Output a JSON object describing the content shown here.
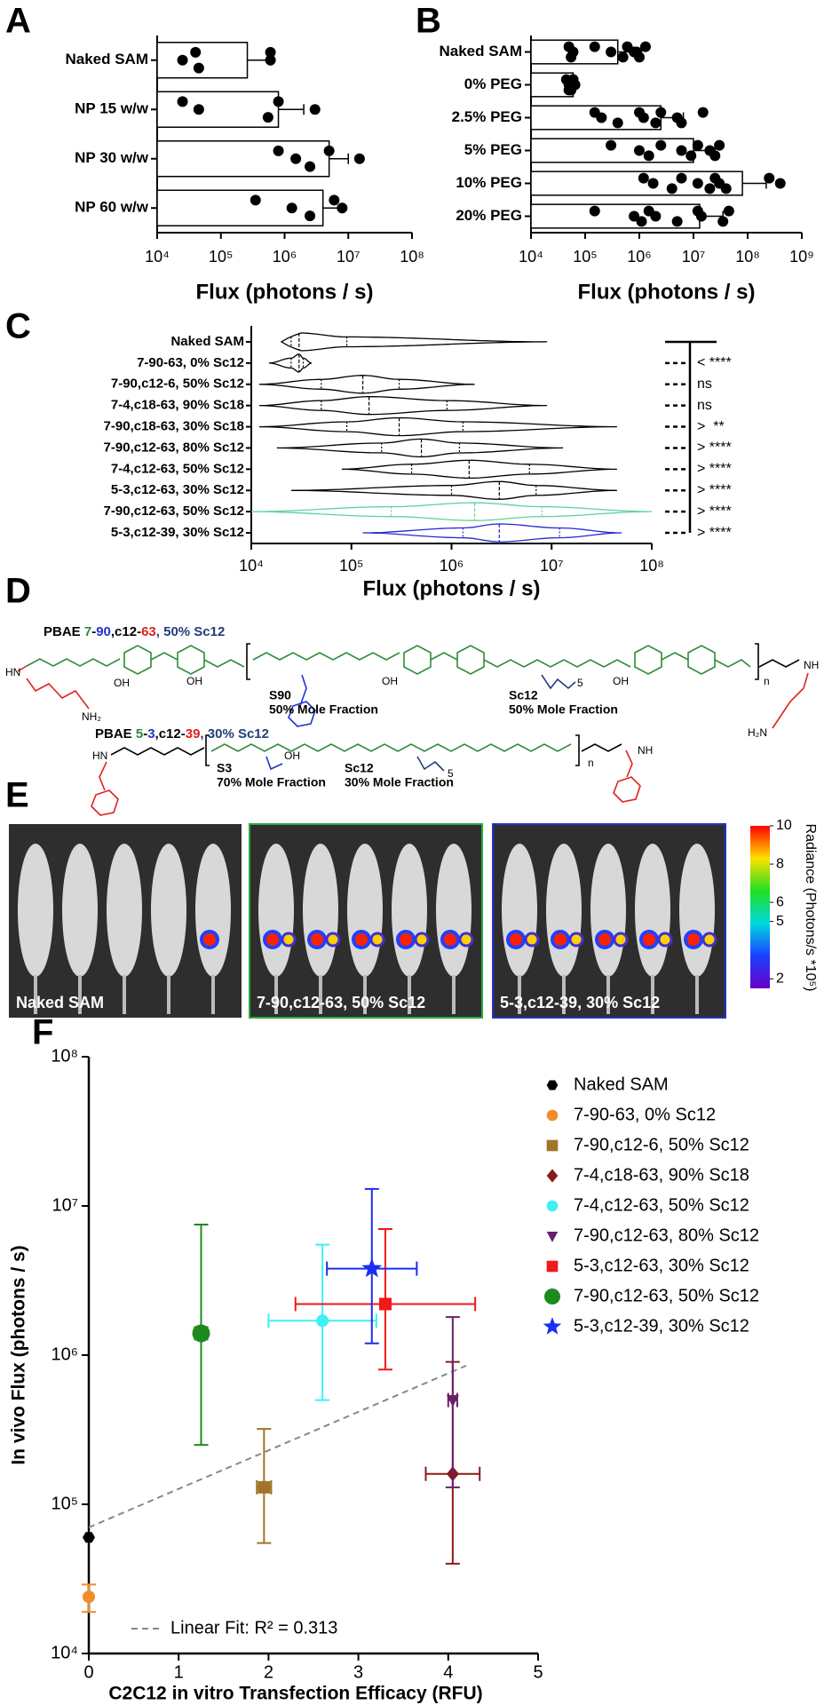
{
  "chart_data": [
    {
      "type": "bar_points",
      "label": "A",
      "xlabel": "Flux (photons / s)",
      "xscale": "log",
      "categories": [
        "Naked SAM",
        "NP 15 w/w",
        "NP 30 w/w",
        "NP 60 w/w"
      ],
      "values": [
        260000,
        800000,
        5000000,
        4000000
      ],
      "errors": [
        340000,
        1200000,
        5000000,
        4000000
      ],
      "points": [
        [
          40000,
          25000,
          45000,
          600000,
          600000
        ],
        [
          25000,
          45000,
          550000,
          800000,
          3000000
        ],
        [
          800000,
          1500000,
          2500000,
          5000000,
          15000000
        ],
        [
          350000,
          1300000,
          2500000,
          6000000,
          8000000
        ]
      ],
      "color": "#ffffff",
      "point_color": "#000000",
      "xlim": [
        10000,
        100000000
      ],
      "xticks": [
        {
          "value": 10000,
          "label": "10⁴"
        },
        {
          "value": 100000,
          "label": "10⁵"
        },
        {
          "value": 1000000,
          "label": "10⁶"
        },
        {
          "value": 10000000,
          "label": "10⁷"
        },
        {
          "value": 100000000,
          "label": "10⁸"
        }
      ]
    },
    {
      "type": "bar_points",
      "label": "B",
      "xlabel": "Flux (photons / s)",
      "xscale": "log",
      "categories": [
        "Naked SAM",
        "0% PEG",
        "2.5% PEG",
        "5% PEG",
        "10% PEG",
        "20% PEG"
      ],
      "values": [
        400000,
        60000,
        2500000,
        10000000,
        80000000,
        13000000
      ],
      "errors": [
        400000,
        5000,
        4000000,
        15000000,
        140000000,
        22000000
      ],
      "points": [
        [
          50000,
          60000,
          55000,
          150000,
          300000,
          500000,
          600000,
          800000,
          1000000,
          1300000,
          900000
        ],
        [
          45000,
          50000,
          55000,
          60000,
          65000,
          50000,
          60000,
          55000
        ],
        [
          150000,
          200000,
          400000,
          1000000,
          1200000,
          2000000,
          2500000,
          5000000,
          6000000,
          15000000
        ],
        [
          300000,
          1000000,
          1500000,
          2500000,
          6000000,
          9000000,
          12000000,
          20000000,
          25000000,
          30000000
        ],
        [
          1200000,
          1800000,
          4000000,
          6000000,
          12000000,
          20000000,
          25000000,
          30000000,
          40000000,
          250000000,
          400000000
        ],
        [
          150000,
          800000,
          1100000,
          1500000,
          2000000,
          5000000,
          12000000,
          14000000,
          35000000,
          45000000
        ]
      ],
      "color": "#ffffff",
      "point_color": "#000000",
      "xlim": [
        10000,
        1000000000
      ],
      "xticks": [
        {
          "value": 10000,
          "label": "10⁴"
        },
        {
          "value": 100000,
          "label": "10⁵"
        },
        {
          "value": 1000000,
          "label": "10⁶"
        },
        {
          "value": 10000000,
          "label": "10⁷"
        },
        {
          "value": 100000000,
          "label": "10⁸"
        },
        {
          "value": 1000000000,
          "label": "10⁹"
        }
      ]
    },
    {
      "type": "violin",
      "label": "C",
      "xlabel": "Flux (photons / s)",
      "xscale": "log",
      "categories": [
        "Naked SAM",
        "7-90-63, 0% Sc12",
        "7-90,c12-6, 50% Sc12",
        "7-4,c18-63, 90% Sc18",
        "7-90,c18-63, 30% Sc18",
        "7-90,c12-63, 80% Sc12",
        "7-4,c12-63, 50% Sc12",
        "5-3,c12-63, 30% Sc12",
        "7-90,c12-63, 50% Sc12",
        "5-3,c12-39, 30% Sc12"
      ],
      "min": [
        20000,
        15000,
        12000,
        12000,
        12000,
        18000,
        80000,
        25000,
        10000,
        130000
      ],
      "q1": [
        25000,
        25000,
        50000,
        50000,
        90000,
        200000,
        400000,
        1000000,
        250000,
        1300000
      ],
      "median": [
        30000,
        30000,
        130000,
        150000,
        300000,
        500000,
        1500000,
        3000000,
        1700000,
        3000000
      ],
      "q3": [
        90000,
        33000,
        300000,
        900000,
        1300000,
        1200000,
        6000000,
        7000000,
        8000000,
        12000000
      ],
      "max": [
        9000000,
        40000,
        1700000,
        9000000,
        45000000,
        13000000,
        45000000,
        45000000,
        100000000,
        50000000
      ],
      "colors": [
        "#000000",
        "#000000",
        "#000000",
        "#000000",
        "#000000",
        "#000000",
        "#000000",
        "#000000",
        "#5fd39a",
        "#2727d0"
      ],
      "significance": [
        null,
        "< ****",
        "ns",
        "ns",
        ">  **",
        "> ****",
        "> ****",
        "> ****",
        "> ****",
        "> ****"
      ],
      "xlim": [
        10000,
        100000000
      ],
      "xticks": [
        {
          "value": 10000,
          "label": "10⁴"
        },
        {
          "value": 100000,
          "label": "10⁵"
        },
        {
          "value": 1000000,
          "label": "10⁶"
        },
        {
          "value": 10000000,
          "label": "10⁷"
        },
        {
          "value": 100000000,
          "label": "10⁸"
        }
      ]
    },
    {
      "type": "scatter",
      "label": "F",
      "xlabel": "C2C12 in vitro Transfection Efficacy (RFU)",
      "ylabel": "In vivo Flux (photons / s)",
      "yscale": "log",
      "xlim": [
        0,
        5
      ],
      "xticks": [
        0,
        1,
        2,
        3,
        4,
        5
      ],
      "ylim": [
        10000,
        100000000
      ],
      "yticks": [
        {
          "value": 10000,
          "label": "10⁴"
        },
        {
          "value": 100000,
          "label": "10⁵"
        },
        {
          "value": 1000000,
          "label": "10⁶"
        },
        {
          "value": 10000000,
          "label": "10⁷"
        },
        {
          "value": 100000000,
          "label": "10⁸"
        }
      ],
      "series": [
        {
          "name": "Naked SAM",
          "color": "#000000",
          "marker": "hexagon",
          "x": 0,
          "y": 60000
        },
        {
          "name": "7-90-63, 0% Sc12",
          "color": "#f28c28",
          "marker": "circle",
          "x": 0,
          "y": 24000,
          "y_low": 19000,
          "y_high": 29000
        },
        {
          "name": "7-90,c12-6, 50% Sc12",
          "color": "#a0752a",
          "marker": "square",
          "x": 1.95,
          "y": 130000,
          "xerr": 0.08,
          "y_low": 55000,
          "y_high": 320000
        },
        {
          "name": "7-4,c18-63, 90% Sc18",
          "color": "#8b1a1a",
          "marker": "diamond",
          "x": 4.05,
          "y": 160000,
          "xerr": 0.3,
          "y_low": 40000,
          "y_high": 900000
        },
        {
          "name": "7-4,c12-63, 50% Sc12",
          "color": "#3ff0f5",
          "marker": "circle",
          "x": 2.6,
          "y": 1700000,
          "xerr": 0.6,
          "y_low": 500000,
          "y_high": 5500000
        },
        {
          "name": "7-90,c12-63, 80% Sc12",
          "color": "#6a1f6a",
          "marker": "triangle-down",
          "x": 4.05,
          "y": 500000,
          "xerr": 0.05,
          "y_low": 130000,
          "y_high": 1800000
        },
        {
          "name": "5-3,c12-63, 30% Sc12",
          "color": "#f01818",
          "marker": "square",
          "x": 3.3,
          "y": 2200000,
          "xerr": 1.0,
          "y_low": 800000,
          "y_high": 7000000
        },
        {
          "name": "7-90,c12-63, 50% Sc12",
          "color": "#1e8a1e",
          "marker": "big-circle",
          "x": 1.25,
          "y": 1400000,
          "xerr": 0.07,
          "y_low": 250000,
          "y_high": 7500000
        },
        {
          "name": "5-3,c12-39, 30% Sc12",
          "color": "#1a2ff0",
          "marker": "star",
          "x": 3.15,
          "y": 3800000,
          "xerr": 0.5,
          "y_low": 1200000,
          "y_high": 13000000
        }
      ],
      "fit": {
        "label": "Linear Fit: R² = 0.313",
        "color": "#888888",
        "x": [
          0,
          4.2
        ],
        "y": [
          70000,
          850000
        ]
      }
    }
  ],
  "panel_d": {
    "label": "D",
    "title_1": [
      {
        "text": "PBAE ",
        "color": "#000000"
      },
      {
        "text": "7",
        "color": "#2e8b3a"
      },
      {
        "text": "-",
        "color": "#000000"
      },
      {
        "text": "90",
        "color": "#2233cc"
      },
      {
        "text": ",c12-",
        "color": "#000000"
      },
      {
        "text": "63",
        "color": "#e02020"
      },
      {
        "text": ", 50% Sc12",
        "color": "#1f3f7a"
      }
    ],
    "title_2": [
      {
        "text": "PBAE ",
        "color": "#000000"
      },
      {
        "text": "5",
        "color": "#2e8b3a"
      },
      {
        "text": "-",
        "color": "#000000"
      },
      {
        "text": "3",
        "color": "#2233cc"
      },
      {
        "text": ",c12-",
        "color": "#000000"
      },
      {
        "text": "39",
        "color": "#e02020"
      },
      {
        "text": ", 30% Sc12",
        "color": "#1f3f7a"
      }
    ],
    "labels": [
      {
        "text": "S90",
        "color": "#2233cc"
      },
      {
        "text": "50% Mole Fraction",
        "color": "#2233cc"
      },
      {
        "text": "Sc12",
        "color": "#1f3f7a"
      },
      {
        "text": "50% Mole Fraction",
        "color": "#1f3f7a"
      },
      {
        "text": "S3",
        "color": "#2233cc"
      },
      {
        "text": "70% Mole Fraction",
        "color": "#2233cc"
      },
      {
        "text": "Sc12",
        "color": "#1f3f7a"
      },
      {
        "text": "30% Mole Fraction",
        "color": "#1f3f7a"
      },
      {
        "text": "HN",
        "color": "#e02020"
      },
      {
        "text": "NH₂",
        "color": "#e02020"
      },
      {
        "text": "OH",
        "color": "#2e8b3a"
      },
      {
        "text": "OH",
        "color": "#2e8b3a"
      },
      {
        "text": "OH",
        "color": "#2e8b3a"
      },
      {
        "text": "OH",
        "color": "#2e8b3a"
      },
      {
        "text": "n",
        "color": "#000000"
      },
      {
        "text": "NH",
        "color": "#e02020"
      },
      {
        "text": "H₂N",
        "color": "#e02020"
      },
      {
        "text": "5",
        "color": "#1f3f7a"
      },
      {
        "text": "HN",
        "color": "#e02020"
      },
      {
        "text": "OH",
        "color": "#2233cc"
      },
      {
        "text": "5",
        "color": "#1f3f7a"
      },
      {
        "text": "n",
        "color": "#000000"
      },
      {
        "text": "NH",
        "color": "#e02020"
      }
    ]
  },
  "panel_e": {
    "label": "E",
    "images": [
      "Naked SAM",
      "7-90,c12-63, 50% Sc12",
      "5-3,c12-39, 30% Sc12"
    ],
    "colorbar": {
      "label": "Radiance (Photons/s *10⁵)",
      "lim": [
        1.5,
        10
      ],
      "ticks": [
        2,
        5,
        6,
        8,
        10
      ]
    }
  }
}
